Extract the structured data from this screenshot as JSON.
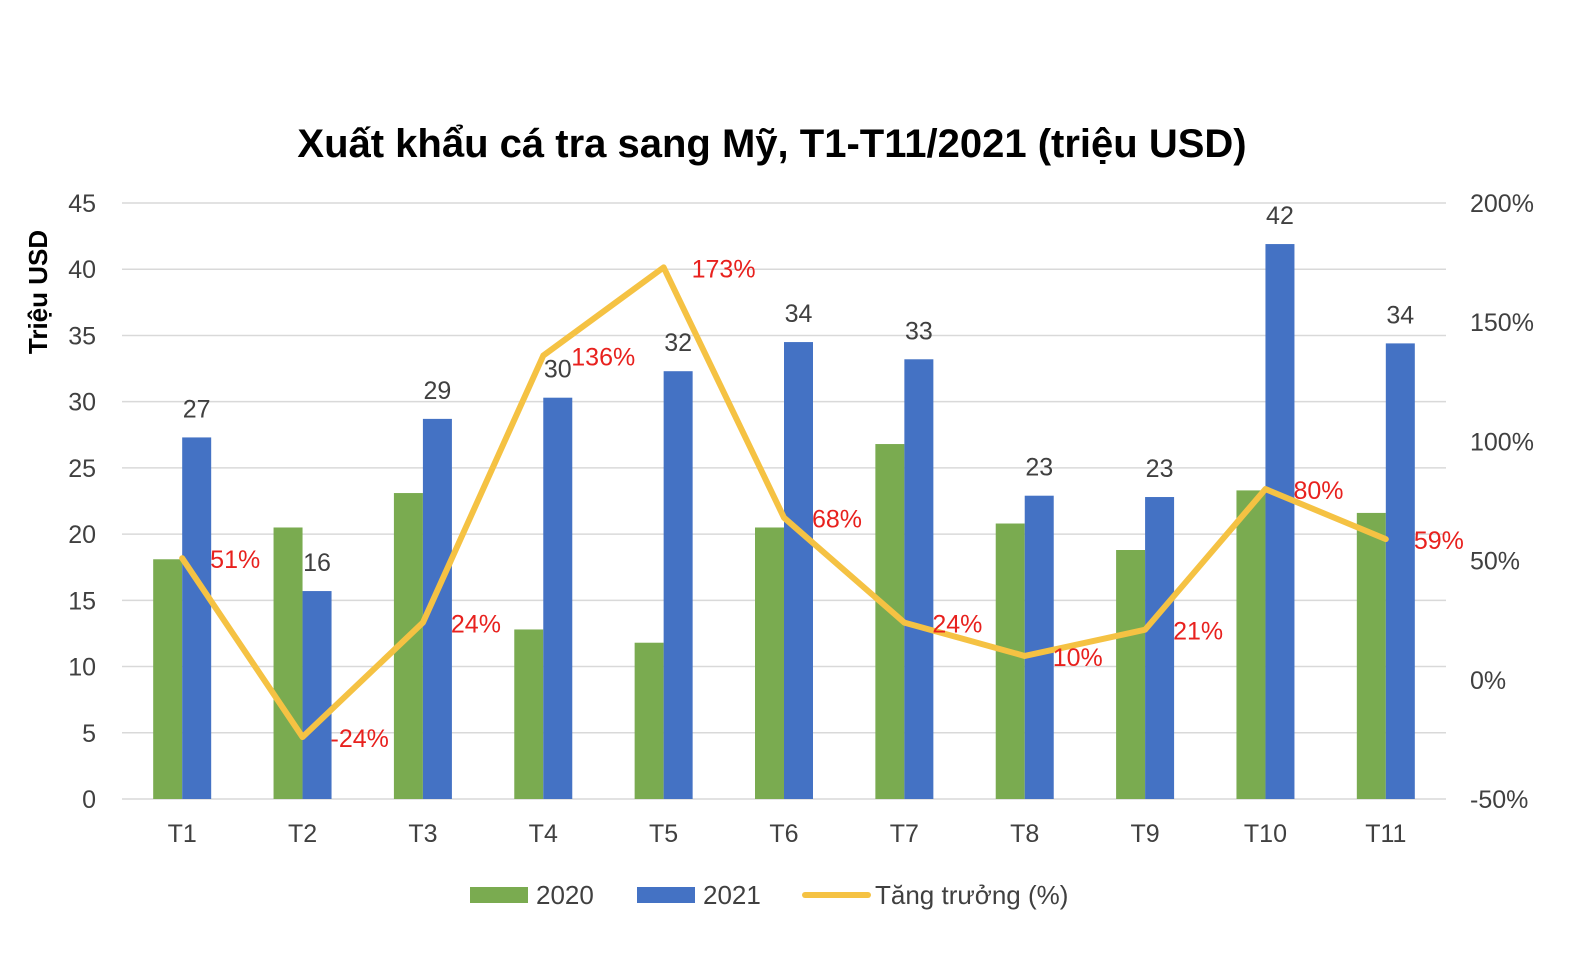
{
  "chart_data": {
    "type": "bar",
    "title": "Xuất khẩu cá tra sang Mỹ, T1-T11/2021 (triệu USD)",
    "ylabel": "Triệu USD",
    "ylabel_right": "",
    "xlabel": "",
    "categories": [
      "T1",
      "T2",
      "T3",
      "T4",
      "T5",
      "T6",
      "T7",
      "T8",
      "T9",
      "T10",
      "T11"
    ],
    "ylim": [
      0,
      45
    ],
    "yticks": [
      0,
      5,
      10,
      15,
      20,
      25,
      30,
      35,
      40,
      45
    ],
    "y2lim": [
      -50,
      200
    ],
    "y2ticks": [
      -50,
      0,
      50,
      100,
      150,
      200
    ],
    "y2tick_labels": [
      "-50%",
      "0%",
      "50%",
      "100%",
      "150%",
      "200%"
    ],
    "grid": true,
    "legend_position": "bottom",
    "series": [
      {
        "name": "2020",
        "type": "bar",
        "axis": "left",
        "color": "#7aab50",
        "values": [
          18.1,
          20.5,
          23.1,
          12.8,
          11.8,
          20.5,
          26.8,
          20.8,
          18.8,
          23.3,
          21.6
        ]
      },
      {
        "name": "2021",
        "type": "bar",
        "axis": "left",
        "color": "#4472c4",
        "values": [
          27.3,
          15.7,
          28.7,
          30.3,
          32.3,
          34.5,
          33.2,
          22.9,
          22.8,
          41.9,
          34.4
        ],
        "labels": [
          "27",
          "16",
          "29",
          "30",
          "32",
          "34",
          "33",
          "23",
          "23",
          "42",
          "34"
        ]
      },
      {
        "name": "Tăng trưởng (%)",
        "type": "line",
        "axis": "right",
        "color": "#f5c243",
        "values": [
          51,
          -24,
          24,
          136,
          173,
          68,
          24,
          10,
          21,
          80,
          59
        ],
        "labels": [
          "51%",
          "-24%",
          "24%",
          "136%",
          "173%",
          "68%",
          "24%",
          "10%",
          "21%",
          "80%",
          "59%"
        ]
      }
    ]
  }
}
